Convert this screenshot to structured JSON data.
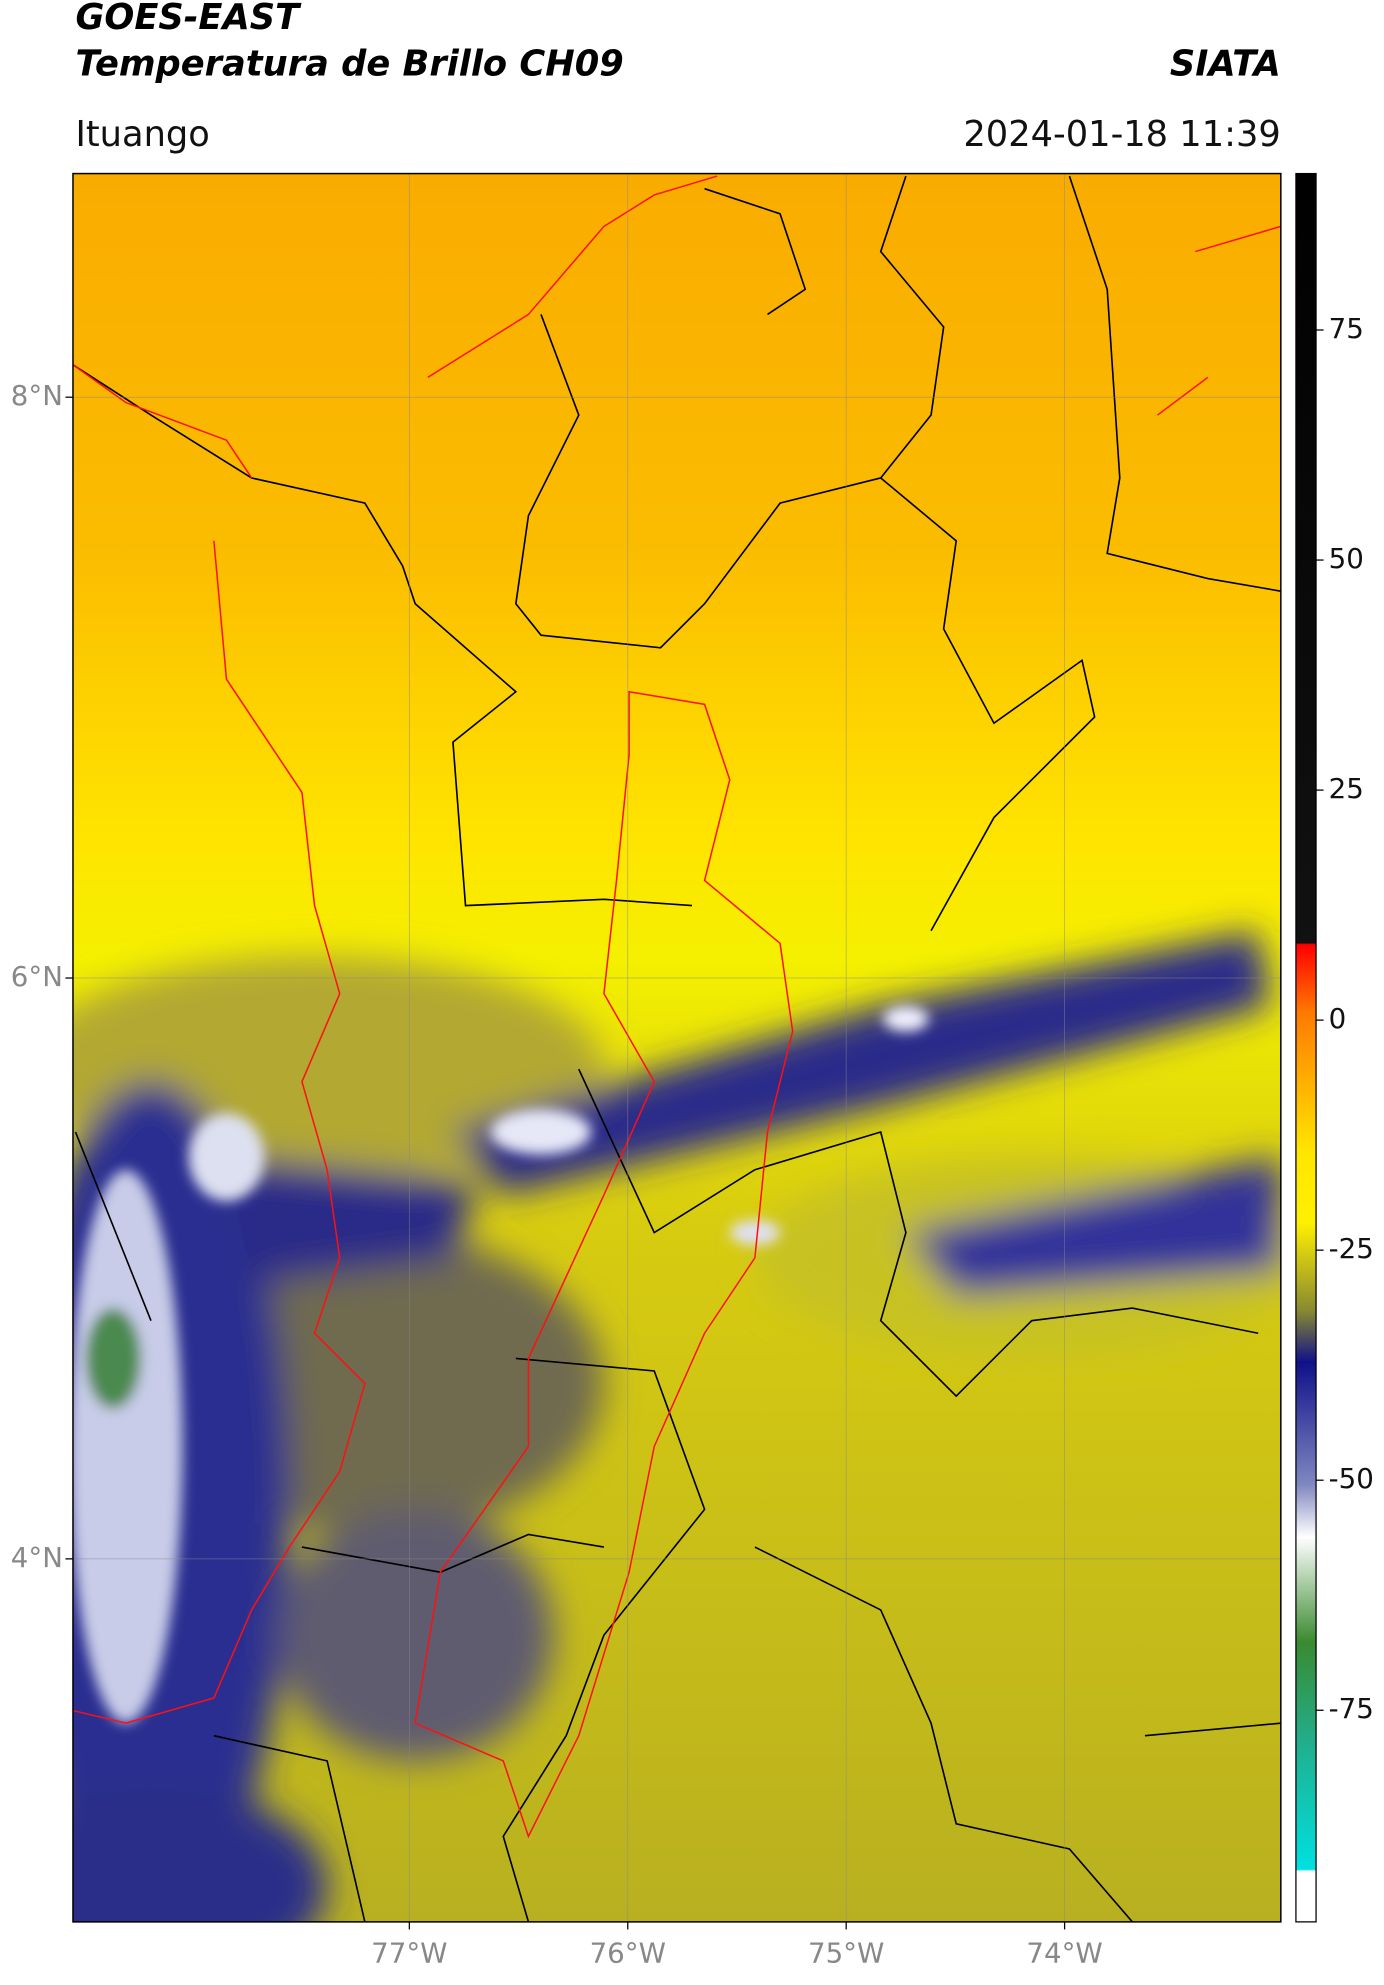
{
  "header": {
    "title": "GOES-EAST",
    "subtitle": "Temperatura de Brillo CH09",
    "brand": "SIATA",
    "location": "Ituango",
    "datetime": "2024-01-18 11:39"
  },
  "map": {
    "xlim": [
      -78.54,
      -73.01
    ],
    "ylim": [
      2.75,
      8.77
    ],
    "xticks": [
      {
        "value": -77,
        "label": "77°W"
      },
      {
        "value": -76,
        "label": "76°W"
      },
      {
        "value": -75,
        "label": "75°W"
      },
      {
        "value": -74,
        "label": "74°W"
      }
    ],
    "yticks": [
      {
        "value": 8,
        "label": "8°N"
      },
      {
        "value": 6,
        "label": "6°N"
      },
      {
        "value": 4,
        "label": "4°N"
      }
    ],
    "grid": true
  },
  "colorbar": {
    "lim": [
      -98,
      92
    ],
    "ticks": [
      75,
      50,
      25,
      0,
      -25,
      -50,
      -75
    ]
  }
}
